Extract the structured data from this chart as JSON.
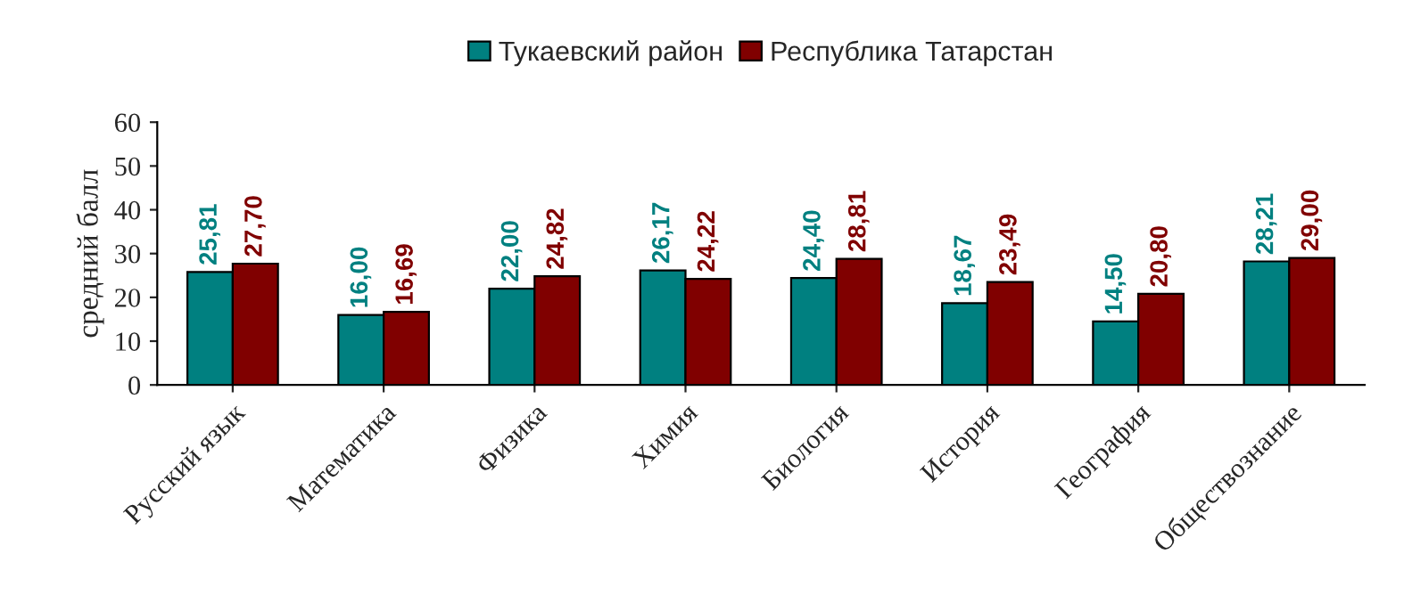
{
  "chart_data": {
    "type": "bar",
    "ylabel": "средний балл",
    "categories": [
      "Русский язык",
      "Математика",
      "Физика",
      "Химия",
      "Биология",
      "История",
      "География",
      "Обществознание"
    ],
    "series": [
      {
        "name": "Тукаевский район",
        "color": "#008080",
        "values": [
          25.81,
          16.0,
          22.0,
          26.17,
          24.4,
          18.67,
          14.5,
          28.21
        ],
        "value_labels": [
          "25,81",
          "16,00",
          "22,00",
          "26,17",
          "24,40",
          "18,67",
          "14,50",
          "28,21"
        ]
      },
      {
        "name": "Республика Татарстан",
        "color": "#800000",
        "values": [
          27.7,
          16.69,
          24.82,
          24.22,
          28.81,
          23.49,
          20.8,
          29.0
        ],
        "value_labels": [
          "27,70",
          "16,69",
          "24,82",
          "24,22",
          "28,81",
          "23,49",
          "20,80",
          "29,00"
        ]
      }
    ],
    "ylim": [
      0,
      60
    ],
    "yticks": [
      0,
      10,
      20,
      30,
      40,
      50,
      60
    ],
    "grid": false,
    "legend": "top"
  }
}
